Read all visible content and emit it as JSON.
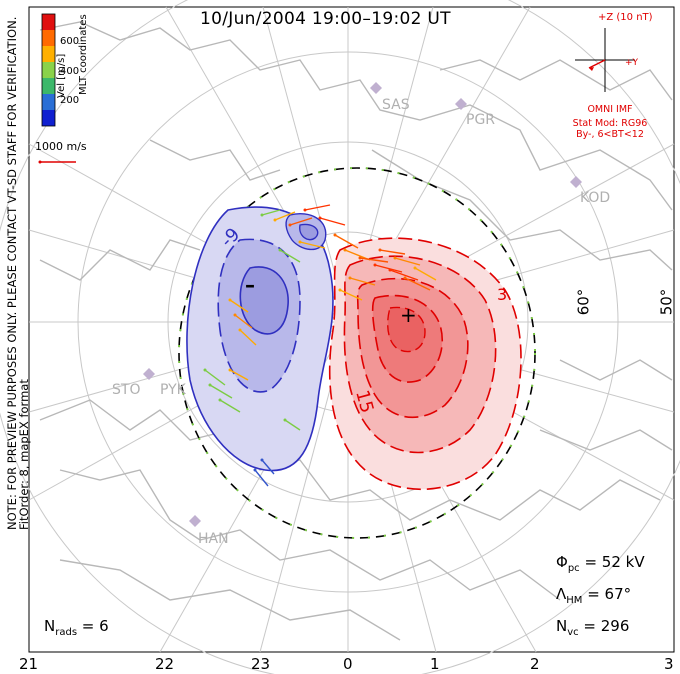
{
  "title": "10/Jun/2004 19:00–19:02 UT",
  "side_note": {
    "line1": "NOTE: FOR PREVIEW PURPOSES ONLY. PLEASE CONTACT VT-SD STAFF FOR VERIFICATION.",
    "line2": "FitOrder: 8, mapEX format"
  },
  "velocity_scale": {
    "label": "Vel [m/s]",
    "ticks": [
      "600",
      "400",
      "200"
    ],
    "coord_label": "MLT coordinates",
    "vector_label": "1000 m/s"
  },
  "imf": {
    "z_label": "+Z (10 nT)",
    "y_label": "+Y",
    "source": "OMNI IMF",
    "model_line1": "Stat Mod: RG96",
    "model_line2": "By-, 6<BT<12"
  },
  "stations": [
    "SAS",
    "PGR",
    "KOD",
    "STO",
    "PYK",
    "HAN"
  ],
  "contour_labels": [
    "-9",
    "15",
    "3"
  ],
  "potential_marks": {
    "minus": "–",
    "plus": "+"
  },
  "latitude_labels": [
    "60°",
    "50°"
  ],
  "stats": {
    "phi_pc": "52 kV",
    "lambda_hm": "67°",
    "n_vc": "296",
    "n_rads": "6"
  },
  "mlt_ticks": [
    "21",
    "22",
    "23",
    "0",
    "1",
    "2",
    "3"
  ],
  "colors": {
    "positive_fill": "#f06060",
    "negative_fill": "#8888dd",
    "boundary": "#000000",
    "grid": "#c8c8c8",
    "coastline": "#b8b8b8",
    "annotation_red": "#e00000"
  }
}
